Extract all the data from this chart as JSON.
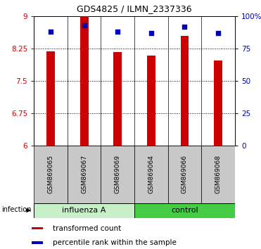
{
  "title": "GDS4825 / ILMN_2337336",
  "samples": [
    "GSM869065",
    "GSM869067",
    "GSM869069",
    "GSM869064",
    "GSM869066",
    "GSM869068"
  ],
  "bar_values": [
    8.18,
    9.42,
    8.17,
    8.08,
    8.55,
    7.97
  ],
  "percentile_values": [
    88,
    93,
    88,
    87,
    92,
    87
  ],
  "bar_color": "#CC0000",
  "dot_color": "#0000BB",
  "ylim_left": [
    6,
    9
  ],
  "ylim_right": [
    0,
    100
  ],
  "yticks_left": [
    6,
    6.75,
    7.5,
    8.25,
    9
  ],
  "yticks_right": [
    0,
    25,
    50,
    75,
    100
  ],
  "ylabel_left_color": "#CC0000",
  "ylabel_right_color": "#0000BB",
  "legend_bar_label": "transformed count",
  "legend_dot_label": "percentile rank within the sample",
  "group_influenza_color": "#C8F0C8",
  "group_control_color": "#44CC44",
  "sample_bg_color": "#C8C8C8"
}
